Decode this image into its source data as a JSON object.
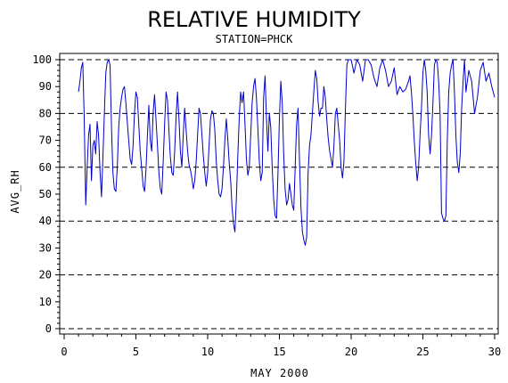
{
  "chart_data": {
    "type": "line",
    "title": "RELATIVE HUMIDITY",
    "subtitle": "STATION=PHCK",
    "xlabel": "MAY 2000",
    "ylabel": "AVG_RH",
    "xlim": [
      0,
      30
    ],
    "ylim": [
      0,
      100
    ],
    "xticks": [
      0,
      5,
      10,
      15,
      20,
      25,
      30
    ],
    "yticks": [
      0,
      10,
      20,
      30,
      40,
      50,
      60,
      70,
      80,
      90,
      100
    ],
    "reference_lines": [
      0,
      20,
      40,
      60,
      80,
      100
    ],
    "grid": "dashed horizontal reference lines",
    "series": [
      {
        "color": "#0000cc",
        "x": [
          1.0,
          1.1,
          1.2,
          1.3,
          1.4,
          1.5,
          1.6,
          1.7,
          1.8,
          1.9,
          2.0,
          2.1,
          2.2,
          2.3,
          2.4,
          2.5,
          2.6,
          2.7,
          2.8,
          2.9,
          3.0,
          3.1,
          3.2,
          3.3,
          3.4,
          3.5,
          3.6,
          3.7,
          3.8,
          3.9,
          4.0,
          4.1,
          4.2,
          4.3,
          4.4,
          4.5,
          4.6,
          4.7,
          4.8,
          4.9,
          5.0,
          5.1,
          5.2,
          5.3,
          5.4,
          5.5,
          5.6,
          5.7,
          5.8,
          5.9,
          6.0,
          6.1,
          6.2,
          6.3,
          6.4,
          6.5,
          6.6,
          6.7,
          6.8,
          6.9,
          7.0,
          7.1,
          7.2,
          7.3,
          7.4,
          7.5,
          7.6,
          7.7,
          7.8,
          7.9,
          8.0,
          8.1,
          8.2,
          8.3,
          8.4,
          8.5,
          8.6,
          8.7,
          8.8,
          8.9,
          9.0,
          9.1,
          9.2,
          9.3,
          9.4,
          9.5,
          9.6,
          9.7,
          9.8,
          9.9,
          10.0,
          10.1,
          10.2,
          10.3,
          10.4,
          10.5,
          10.6,
          10.7,
          10.8,
          10.9,
          11.0,
          11.1,
          11.2,
          11.3,
          11.4,
          11.5,
          11.6,
          11.7,
          11.8,
          11.9,
          12.0,
          12.1,
          12.2,
          12.3,
          12.4,
          12.5,
          12.6,
          12.7,
          12.8,
          12.9,
          13.0,
          13.1,
          13.2,
          13.3,
          13.4,
          13.5,
          13.6,
          13.7,
          13.8,
          13.9,
          14.0,
          14.1,
          14.2,
          14.3,
          14.4,
          14.5,
          14.6,
          14.7,
          14.8,
          14.9,
          15.0,
          15.1,
          15.2,
          15.3,
          15.4,
          15.5,
          15.6,
          15.7,
          15.8,
          15.9,
          16.0,
          16.1,
          16.2,
          16.3,
          16.4,
          16.5,
          16.6,
          16.7,
          16.8,
          16.9,
          17.0,
          17.1,
          17.2,
          17.3,
          17.4,
          17.5,
          17.6,
          17.7,
          17.8,
          17.9,
          18.0,
          18.1,
          18.2,
          18.3,
          18.4,
          18.5,
          18.6,
          18.7,
          18.8,
          18.9,
          19.0,
          19.1,
          19.2,
          19.3,
          19.4,
          19.5,
          19.6,
          19.7,
          19.8,
          19.9,
          20.0,
          20.2,
          20.4,
          20.6,
          20.8,
          21.0,
          21.2,
          21.4,
          21.6,
          21.8,
          22.0,
          22.2,
          22.4,
          22.6,
          22.8,
          23.0,
          23.2,
          23.4,
          23.6,
          23.8,
          24.0,
          24.1,
          24.2,
          24.3,
          24.4,
          24.5,
          24.6,
          24.7,
          24.8,
          24.9,
          25.0,
          25.1,
          25.2,
          25.3,
          25.4,
          25.5,
          25.6,
          25.7,
          25.8,
          25.9,
          26.0,
          26.1,
          26.2,
          26.3,
          26.4,
          26.5,
          26.6,
          26.7,
          26.8,
          26.9,
          27.0,
          27.1,
          27.2,
          27.3,
          27.4,
          27.5,
          27.6,
          27.7,
          27.8,
          27.9,
          28.0,
          28.2,
          28.4,
          28.6,
          28.8,
          29.0,
          29.2,
          29.4,
          29.6,
          29.8,
          30.0
        ],
        "y": [
          88,
          92,
          97,
          99,
          78,
          46,
          60,
          72,
          76,
          55,
          68,
          70,
          65,
          77,
          72,
          58,
          49,
          64,
          80,
          95,
          99,
          100,
          98,
          75,
          58,
          52,
          51,
          60,
          75,
          82,
          86,
          89,
          90,
          84,
          77,
          70,
          63,
          61,
          68,
          80,
          88,
          86,
          76,
          66,
          60,
          53,
          51,
          59,
          72,
          83,
          70,
          66,
          80,
          87,
          78,
          68,
          58,
          52,
          50,
          62,
          76,
          88,
          85,
          74,
          64,
          58,
          57,
          66,
          79,
          88,
          78,
          66,
          60,
          72,
          82,
          74,
          66,
          61,
          59,
          56,
          52,
          55,
          62,
          72,
          82,
          80,
          72,
          64,
          58,
          53,
          58,
          68,
          78,
          81,
          80,
          74,
          62,
          55,
          50,
          49,
          52,
          60,
          70,
          78,
          71,
          62,
          55,
          45,
          39,
          36,
          48,
          64,
          78,
          88,
          84,
          88,
          76,
          63,
          57,
          60,
          72,
          84,
          90,
          93,
          86,
          74,
          62,
          55,
          58,
          86,
          94,
          78,
          66,
          80,
          75,
          60,
          48,
          42,
          41,
          58,
          78,
          92,
          84,
          65,
          52,
          46,
          48,
          54,
          50,
          46,
          44,
          60,
          76,
          82,
          63,
          45,
          36,
          33,
          31,
          34,
          58,
          68,
          72,
          80,
          88,
          96,
          93,
          84,
          79,
          82,
          82,
          90,
          86,
          78,
          71,
          66,
          63,
          60,
          68,
          80,
          82,
          76,
          70,
          60,
          56,
          62,
          82,
          98,
          100,
          100,
          100,
          95,
          100,
          98,
          92,
          100,
          100,
          98,
          93,
          90,
          97,
          100,
          96,
          90,
          92,
          97,
          87,
          90,
          88,
          89,
          92,
          94,
          88,
          80,
          70,
          62,
          55,
          60,
          72,
          82,
          95,
          100,
          96,
          88,
          72,
          65,
          72,
          84,
          98,
          100,
          99,
          92,
          80,
          43,
          41,
          40,
          42,
          70,
          88,
          95,
          98,
          100,
          88,
          72,
          62,
          58,
          65,
          82,
          92,
          100,
          88,
          96,
          92,
          80,
          86,
          96,
          99,
          92,
          95,
          90,
          86
        ]
      }
    ]
  }
}
